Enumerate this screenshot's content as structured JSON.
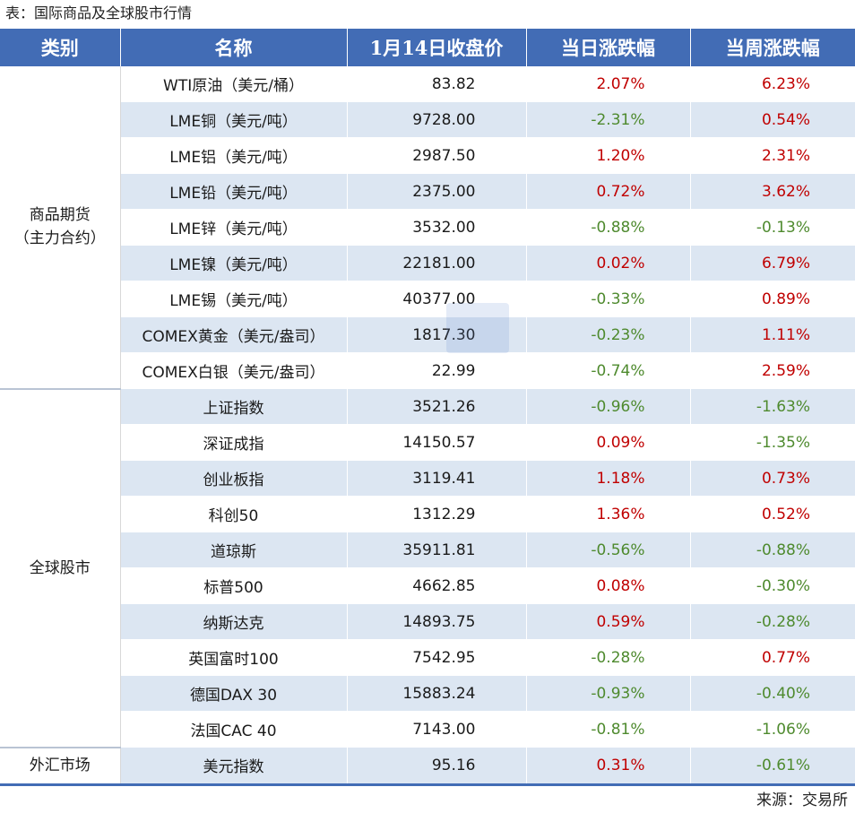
{
  "caption": "表：国际商品及全球股市行情",
  "headers": [
    "类别",
    "名称",
    "1月14日收盘价",
    "当日涨跌幅",
    "当周涨跌幅"
  ],
  "groups": {
    "commodities": {
      "line1": "商品期货",
      "line2": "（主力合约）"
    },
    "stocks": "全球股市",
    "fx": "外汇市场"
  },
  "rows": [
    {
      "name": "WTI原油（美元/桶）",
      "price": "83.82",
      "day": "2.07%",
      "week": "6.23%"
    },
    {
      "name": "LME铜（美元/吨）",
      "price": "9728.00",
      "day": "-2.31%",
      "week": "0.54%"
    },
    {
      "name": "LME铝（美元/吨）",
      "price": "2987.50",
      "day": "1.20%",
      "week": "2.31%"
    },
    {
      "name": "LME铅（美元/吨）",
      "price": "2375.00",
      "day": "0.72%",
      "week": "3.62%"
    },
    {
      "name": "LME锌（美元/吨）",
      "price": "3532.00",
      "day": "-0.88%",
      "week": "-0.13%"
    },
    {
      "name": "LME镍（美元/吨）",
      "price": "22181.00",
      "day": "0.02%",
      "week": "6.79%"
    },
    {
      "name": "LME锡（美元/吨）",
      "price": "40377.00",
      "day": "-0.33%",
      "week": "0.89%"
    },
    {
      "name": "COMEX黄金（美元/盎司）",
      "price": "1817.30",
      "day": "-0.23%",
      "week": "1.11%"
    },
    {
      "name": "COMEX白银（美元/盎司）",
      "price": "22.99",
      "day": "-0.74%",
      "week": "2.59%"
    },
    {
      "name": "上证指数",
      "price": "3521.26",
      "day": "-0.96%",
      "week": "-1.63%"
    },
    {
      "name": "深证成指",
      "price": "14150.57",
      "day": "0.09%",
      "week": "-1.35%"
    },
    {
      "name": "创业板指",
      "price": "3119.41",
      "day": "1.18%",
      "week": "0.73%"
    },
    {
      "name": "科创50",
      "price": "1312.29",
      "day": "1.36%",
      "week": "0.52%"
    },
    {
      "name": "道琼斯",
      "price": "35911.81",
      "day": "-0.56%",
      "week": "-0.88%"
    },
    {
      "name": "标普500",
      "price": "4662.85",
      "day": "0.08%",
      "week": "-0.30%"
    },
    {
      "name": "纳斯达克",
      "price": "14893.75",
      "day": "0.59%",
      "week": "-0.28%"
    },
    {
      "name": "英国富时100",
      "price": "7542.95",
      "day": "-0.28%",
      "week": "0.77%"
    },
    {
      "name": "德国DAX 30",
      "price": "15883.24",
      "day": "-0.93%",
      "week": "-0.40%"
    },
    {
      "name": "法国CAC 40",
      "price": "7143.00",
      "day": "-0.81%",
      "week": "-1.06%"
    },
    {
      "name": "美元指数",
      "price": "95.16",
      "day": "0.31%",
      "week": "-0.61%"
    }
  ],
  "source": "来源：交易所",
  "colors": {
    "header_bg": "#426cb5",
    "stripe": "#dce6f2",
    "up": "#c00000",
    "down": "#4e8a2e"
  }
}
